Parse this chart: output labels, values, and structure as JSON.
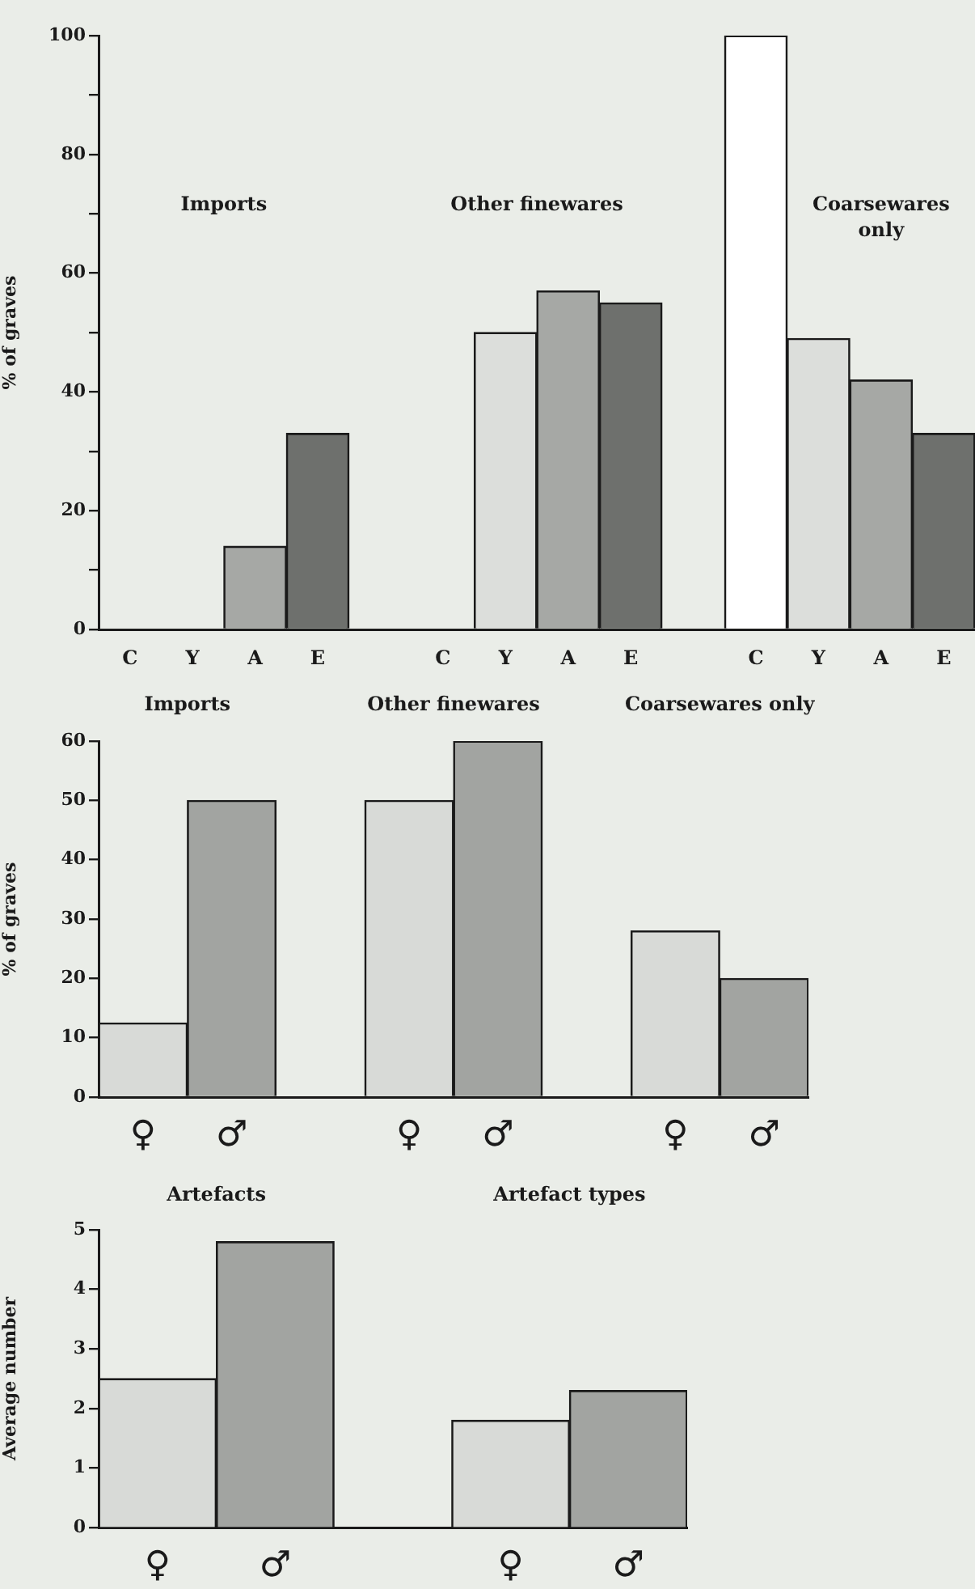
{
  "chart_data": [
    {
      "type": "bar",
      "ylabel": "% of graves",
      "categories": [
        "C",
        "Y",
        "A",
        "E",
        null,
        "C",
        "Y",
        "A",
        "E",
        null,
        "C",
        "Y",
        "A",
        "E"
      ],
      "values": [
        0,
        0,
        14,
        33,
        null,
        0,
        50,
        57,
        55,
        null,
        100,
        49,
        42,
        33
      ],
      "colors": [
        "#ffffff",
        "#dcdedb",
        "#a6a8a5",
        "#6e706d",
        null,
        "#ffffff",
        "#dcdedb",
        "#a6a8a5",
        "#6e706d",
        null,
        "#ffffff",
        "#dcdedb",
        "#a6a8a5",
        "#6e706d"
      ],
      "ylim": [
        0,
        100
      ],
      "yticks": [
        0,
        {
          "value": 10,
          "label": null
        },
        20,
        {
          "value": 30,
          "label": null
        },
        40,
        {
          "value": 50,
          "label": null
        },
        60,
        {
          "value": 70,
          "label": null
        },
        80,
        {
          "value": 90,
          "label": null
        },
        100
      ],
      "annotations": [
        "Imports",
        "Other finewares",
        "Coarsewares only"
      ]
    },
    {
      "type": "bar",
      "ylabel": "% of graves",
      "categories": [
        "♀",
        "♂",
        null,
        "♀",
        "♂",
        null,
        "♀",
        "♂"
      ],
      "values": [
        12.5,
        50,
        null,
        50,
        60,
        null,
        28,
        20
      ],
      "colors": [
        "#d8dad7",
        "#a2a4a1",
        null,
        "#d8dad7",
        "#a2a4a1",
        null,
        "#d8dad7",
        "#a2a4a1"
      ],
      "ylim": [
        0,
        60
      ],
      "yticks": [
        0,
        10,
        20,
        30,
        40,
        50,
        60
      ],
      "annotations": [
        "Imports",
        "Other finewares",
        "Coarsewares only"
      ]
    },
    {
      "type": "bar",
      "ylabel": "Average number",
      "categories": [
        "♀",
        "♂",
        null,
        "♀",
        "♂"
      ],
      "values": [
        2.5,
        4.8,
        null,
        1.8,
        2.3
      ],
      "colors": [
        "#d8dad7",
        "#a2a4a1",
        null,
        "#d8dad7",
        "#a2a4a1"
      ],
      "ylim": [
        0,
        5
      ],
      "yticks": [
        0,
        1,
        2,
        3,
        4,
        5
      ],
      "annotations": [
        "Artefacts",
        "Artefact types"
      ]
    }
  ]
}
